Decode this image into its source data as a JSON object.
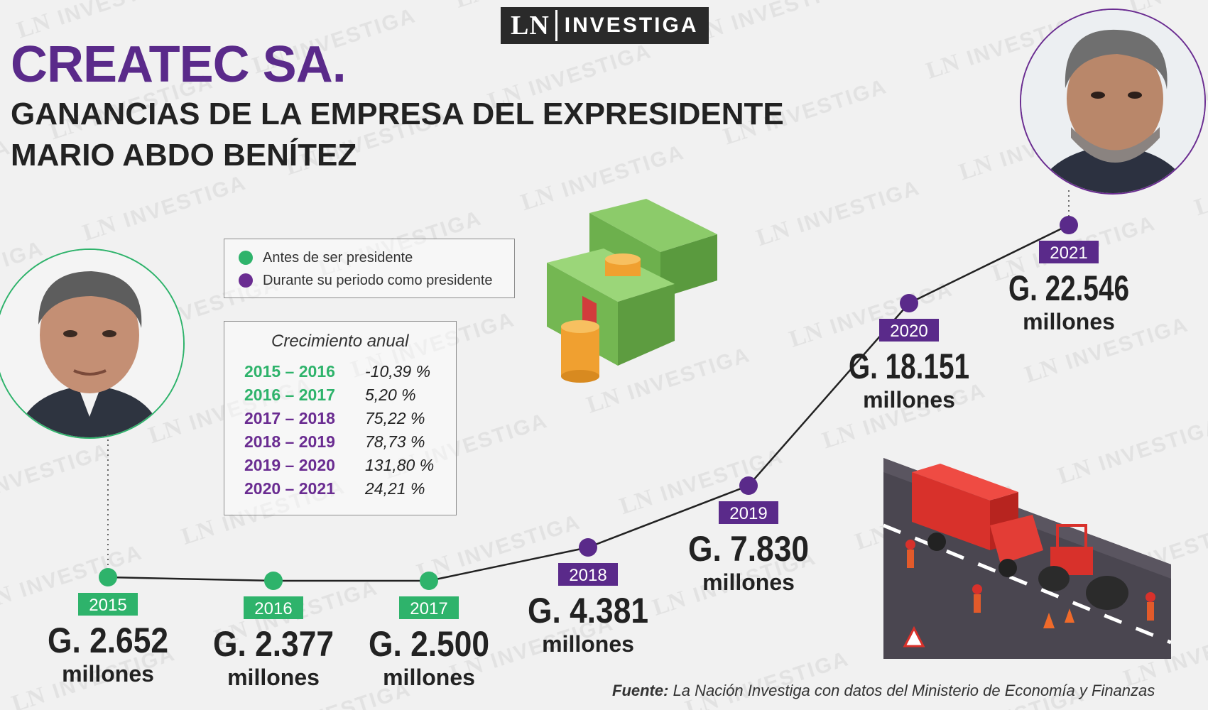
{
  "brand": {
    "ln": "LN",
    "investiga": "INVESTIGA"
  },
  "title": "CREATEC SA.",
  "subtitle": "GANANCIAS DE LA EMPRESA DEL EXPRESIDENTE MARIO ABDO BENÍTEZ",
  "colors": {
    "before": "#2eb36b",
    "during": "#5a2a8a",
    "line": "#222222"
  },
  "legend": [
    {
      "label": "Antes de ser presidente",
      "color": "#2eb36b"
    },
    {
      "label": "Durante su periodo como presidente",
      "color": "#6a2c91"
    }
  ],
  "growth": {
    "heading": "Crecimiento anual",
    "rows": [
      {
        "period": "2015 – 2016",
        "value": "-10,39 %",
        "color": "#2eb36b"
      },
      {
        "period": "2016 – 2017",
        "value": "5,20 %",
        "color": "#2eb36b"
      },
      {
        "period": "2017 – 2018",
        "value": "75,22 %",
        "color": "#6a2c91"
      },
      {
        "period": "2018 – 2019",
        "value": "78,73 %",
        "color": "#6a2c91"
      },
      {
        "period": "2019 – 2020",
        "value": "131,80 %",
        "color": "#6a2c91"
      },
      {
        "period": "2020 – 2021",
        "value": "24,21 %",
        "color": "#6a2c91"
      }
    ]
  },
  "chart_data": {
    "type": "line",
    "title": "Ganancias de Createc SA.",
    "unit": "millones",
    "points": [
      {
        "year": "2015",
        "value": 2652,
        "label": "G. 2.652",
        "phase": "before"
      },
      {
        "year": "2016",
        "value": 2377,
        "label": "G. 2.377",
        "phase": "before"
      },
      {
        "year": "2017",
        "value": 2500,
        "label": "G. 2.500",
        "phase": "before"
      },
      {
        "year": "2018",
        "value": 4381,
        "label": "G. 4.381",
        "phase": "during"
      },
      {
        "year": "2019",
        "value": 7830,
        "label": "G. 7.830",
        "phase": "during"
      },
      {
        "year": "2020",
        "value": 18151,
        "label": "G. 18.151",
        "phase": "during"
      },
      {
        "year": "2021",
        "value": 22546,
        "label": "G. 22.546",
        "phase": "during"
      }
    ]
  },
  "source": {
    "prefix": "Fuente:",
    "text": " La Nación Investiga con datos del Ministerio de Economía y Finanzas"
  }
}
